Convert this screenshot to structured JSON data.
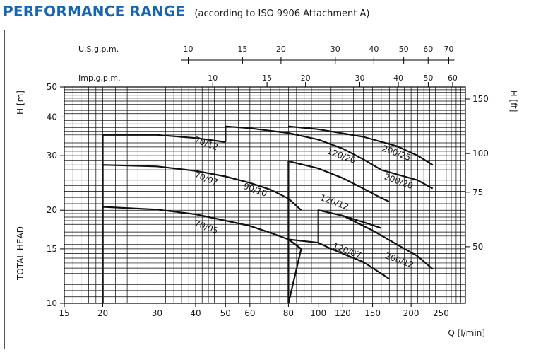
{
  "header": {
    "title": "PERFORMANCE RANGE",
    "subtitle": "(according to ISO 9906 Attachment A)"
  },
  "colors": {
    "title": "#1565b4",
    "grid": "#000000",
    "curve": "#111111"
  },
  "chart_data": {
    "type": "line",
    "scale": "log-log",
    "grid": true,
    "xlabel": "Q [l/min]",
    "ylabel_left": "H [m]",
    "ylabel_left_vertical": "TOTAL HEAD",
    "ylabel_right": "H [ft]",
    "xlim": [
      15,
      300
    ],
    "ylim": [
      10,
      50
    ],
    "x_ticks": [
      15,
      20,
      30,
      40,
      50,
      60,
      80,
      100,
      120,
      150,
      200,
      250
    ],
    "y_ticks": [
      10,
      15,
      20,
      30,
      40,
      50
    ],
    "right_ticks": [
      {
        "label": "50",
        "value_m": 15.24
      },
      {
        "label": "75",
        "value_m": 22.86
      },
      {
        "label": "100",
        "value_m": 30.48
      },
      {
        "label": "150",
        "value_m": 45.72
      }
    ],
    "us_gpm_label": "U.S.g.p.m.",
    "us_gpm_ticks": [
      10,
      15,
      20,
      30,
      40,
      50,
      60,
      70
    ],
    "imp_gpm_label": "Imp.g.p.m.",
    "imp_gpm_ticks": [
      10,
      15,
      20,
      30,
      40,
      50,
      60
    ],
    "series": [
      {
        "name": "70/05",
        "label_at": [
          43,
          17.3
        ],
        "points": [
          [
            20,
            10
          ],
          [
            20,
            20.5
          ],
          [
            30,
            20.1
          ],
          [
            40,
            19.4
          ],
          [
            50,
            18.5
          ],
          [
            60,
            17.8
          ],
          [
            70,
            16.9
          ],
          [
            80,
            16.1
          ],
          [
            88,
            15
          ]
        ]
      },
      {
        "name": "70/07",
        "label_at": [
          43,
          24.8
        ],
        "points": [
          [
            20,
            10
          ],
          [
            20,
            28
          ],
          [
            30,
            27.7
          ],
          [
            40,
            26.8
          ],
          [
            50,
            25.7
          ],
          [
            60,
            24.5
          ],
          [
            70,
            23.3
          ],
          [
            80,
            21.8
          ],
          [
            88,
            20
          ]
        ]
      },
      {
        "name": "70/12",
        "label_at": [
          43,
          32.2
        ],
        "points": [
          [
            20,
            10
          ],
          [
            20,
            35
          ],
          [
            30,
            35
          ],
          [
            40,
            34.2
          ],
          [
            50,
            33.2
          ]
        ]
      },
      {
        "name": "90/10",
        "label_at": [
          62,
          22.8
        ],
        "points": [
          [
            80,
            10
          ],
          [
            88,
            15
          ],
          [
            80,
            16.1
          ],
          [
            100,
            15.7
          ],
          [
            110,
            15
          ],
          [
            140,
            13.6
          ],
          [
            170,
            12
          ]
        ]
      },
      {
        "name": "120/20",
        "label_at": [
          118,
          29.4
        ],
        "points": [
          [
            50,
            33.2
          ],
          [
            50,
            37.3
          ],
          [
            60,
            36.8
          ],
          [
            80,
            35.5
          ],
          [
            100,
            33.8
          ],
          [
            120,
            31.6
          ],
          [
            140,
            29.2
          ],
          [
            160,
            27
          ]
        ]
      },
      {
        "name": "120/12",
        "label_at": [
          112,
          20.8
        ],
        "points": [
          [
            80,
            10
          ],
          [
            80,
            16.1
          ],
          [
            80,
            28.8
          ],
          [
            100,
            27.3
          ],
          [
            120,
            25.4
          ],
          [
            140,
            23.5
          ],
          [
            160,
            21.9
          ],
          [
            170,
            21.3
          ]
        ]
      },
      {
        "name": "120/07",
        "label_at": [
          123,
          14.5
        ],
        "points": [
          [
            100,
            15.7
          ],
          [
            100,
            20
          ],
          [
            120,
            19.2
          ],
          [
            140,
            18.3
          ],
          [
            160,
            17.5
          ]
        ]
      },
      {
        "name": "200/25",
        "label_at": [
          178,
          30
        ],
        "points": [
          [
            80,
            37.3
          ],
          [
            100,
            36.5
          ],
          [
            140,
            34.5
          ],
          [
            180,
            32.2
          ],
          [
            210,
            30
          ],
          [
            235,
            28
          ]
        ]
      },
      {
        "name": "200/20",
        "label_at": [
          181,
          24.3
        ],
        "points": [
          [
            160,
            27
          ],
          [
            180,
            26.1
          ],
          [
            210,
            25
          ],
          [
            235,
            23.5
          ]
        ]
      },
      {
        "name": "200/12",
        "label_at": [
          182,
          13.5
        ],
        "points": [
          [
            120,
            19.2
          ],
          [
            150,
            17.2
          ],
          [
            180,
            15.5
          ],
          [
            210,
            14.2
          ],
          [
            235,
            12.9
          ]
        ]
      }
    ]
  }
}
